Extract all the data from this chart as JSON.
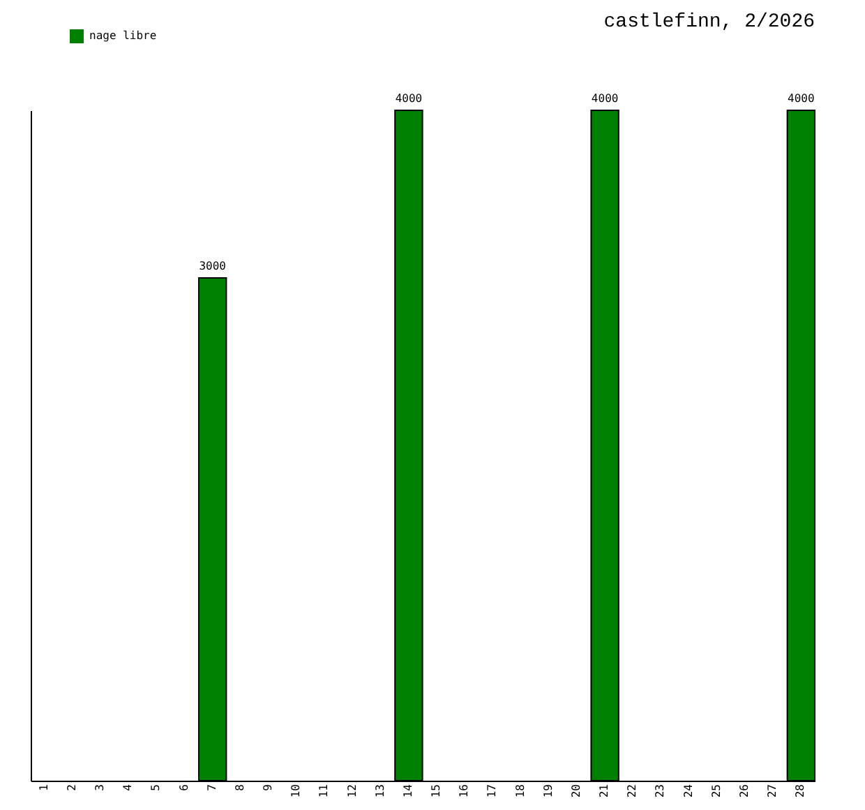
{
  "chart_data": {
    "type": "bar",
    "title": "castlefinn, 2/2026",
    "categories": [
      "1",
      "2",
      "3",
      "4",
      "5",
      "6",
      "7",
      "8",
      "9",
      "10",
      "11",
      "12",
      "13",
      "14",
      "15",
      "16",
      "17",
      "18",
      "19",
      "20",
      "21",
      "22",
      "23",
      "24",
      "25",
      "26",
      "27",
      "28"
    ],
    "series": [
      {
        "name": "nage libre",
        "color": "#008000",
        "values": [
          null,
          null,
          null,
          null,
          null,
          null,
          3000,
          null,
          null,
          null,
          null,
          null,
          null,
          4000,
          null,
          null,
          null,
          null,
          null,
          null,
          4000,
          null,
          null,
          null,
          null,
          null,
          null,
          4000
        ]
      }
    ],
    "data_labels": true,
    "legend": "top left",
    "tick_labels": "x"
  }
}
